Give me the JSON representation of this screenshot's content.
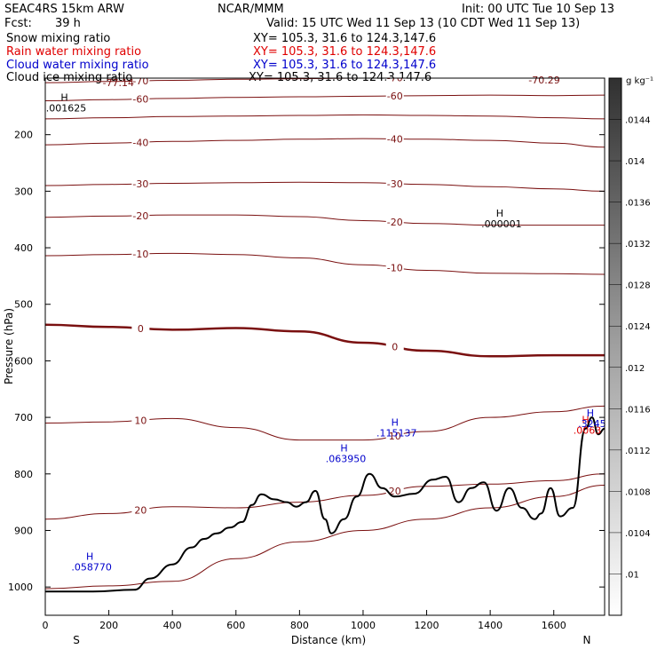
{
  "header": {
    "model": "SEAC4RS 15km ARW",
    "center": "NCAR/MMM",
    "init": "Init: 00 UTC Tue 10 Sep 13",
    "fcst_label": "Fcst:",
    "fcst_value": "39 h",
    "valid": "Valid: 15 UTC Wed 11 Sep 13 (10 CDT Wed 11 Sep 13)",
    "fields": [
      {
        "name": "Snow mixing ratio",
        "xy": "XY= 105.3, 31.6 to 124.3,147.6",
        "color": "#000000"
      },
      {
        "name": "Rain water mixing ratio",
        "xy": "XY= 105.3, 31.6 to 124.3,147.6",
        "color": "#e00000"
      },
      {
        "name": "Cloud water mixing ratio",
        "xy": "XY= 105.3, 31.6 to 124.3,147.6",
        "color": "#0000cc"
      },
      {
        "name": "Cloud ice mixing ratio",
        "xy": "XY= 105.3, 31.6 to 124.3,147.6",
        "color": "#000000"
      }
    ]
  },
  "chart_data": {
    "type": "line",
    "xlabel": "Distance (km)",
    "ylabel": "Pressure (hPa)",
    "xlim": [
      0,
      1760
    ],
    "ylim": [
      1050,
      100
    ],
    "x_ticks": [
      0,
      200,
      400,
      600,
      800,
      1000,
      1200,
      1400,
      1600
    ],
    "y_ticks": [
      200,
      300,
      400,
      500,
      600,
      700,
      800,
      900,
      1000
    ],
    "x_end_labels": {
      "left": "S",
      "right": "N"
    },
    "colorbar": {
      "unit": "g kg⁻¹",
      "ticks": [
        ".01",
        ".0104",
        ".0108",
        ".0112",
        ".0116",
        ".012",
        ".0124",
        ".0128",
        ".0132",
        ".0136",
        ".014",
        ".0144"
      ],
      "range": [
        0.0096,
        0.0148
      ]
    },
    "temperature_contours": [
      {
        "level": -70,
        "label": "-70",
        "x": [
          0,
          200,
          400,
          600,
          800,
          1000,
          1200,
          1400,
          1600,
          1760
        ],
        "p": [
          108,
          106,
          104,
          102,
          101,
          100,
          99,
          98,
          97,
          96
        ]
      },
      {
        "level": -60,
        "label": "-60",
        "x": [
          0,
          200,
          400,
          600,
          800,
          1000,
          1200,
          1400,
          1600,
          1760
        ],
        "p": [
          140,
          138,
          136,
          134,
          133,
          132,
          131,
          130,
          131,
          130
        ]
      },
      {
        "level": -50,
        "label": "",
        "x": [
          0,
          200,
          400,
          600,
          800,
          1000,
          1200,
          1400,
          1600,
          1760
        ],
        "p": [
          172,
          170,
          168,
          167,
          166,
          165,
          166,
          167,
          170,
          172
        ]
      },
      {
        "level": -40,
        "label": "-40",
        "x": [
          0,
          200,
          400,
          600,
          800,
          1000,
          1200,
          1400,
          1600,
          1760
        ],
        "p": [
          218,
          215,
          212,
          210,
          208,
          207,
          208,
          210,
          215,
          222
        ]
      },
      {
        "level": -30,
        "label": "-30",
        "x": [
          0,
          200,
          400,
          600,
          800,
          1000,
          1200,
          1400,
          1600,
          1760
        ],
        "p": [
          290,
          288,
          286,
          285,
          284,
          285,
          288,
          292,
          296,
          300
        ]
      },
      {
        "level": -20,
        "label": "-20",
        "x": [
          0,
          200,
          400,
          600,
          800,
          1000,
          1200,
          1400,
          1600,
          1760
        ],
        "p": [
          346,
          344,
          342,
          342,
          345,
          352,
          357,
          360,
          360,
          360
        ]
      },
      {
        "level": -10,
        "label": "-10",
        "x": [
          0,
          200,
          400,
          600,
          800,
          1000,
          1200,
          1400,
          1600,
          1760
        ],
        "p": [
          414,
          412,
          410,
          412,
          418,
          430,
          440,
          445,
          446,
          447
        ]
      },
      {
        "level": 0,
        "label": "0",
        "x": [
          0,
          200,
          400,
          600,
          800,
          1000,
          1200,
          1400,
          1600,
          1760
        ],
        "p": [
          536,
          540,
          545,
          542,
          548,
          568,
          582,
          592,
          590,
          590
        ]
      },
      {
        "level": 10,
        "label": "10",
        "x": [
          0,
          200,
          400,
          600,
          800,
          1000,
          1200,
          1400,
          1600,
          1760
        ],
        "p": [
          710,
          708,
          702,
          718,
          740,
          740,
          725,
          700,
          690,
          680
        ]
      },
      {
        "level": 20,
        "label": "20",
        "x": [
          0,
          200,
          400,
          600,
          800,
          1000,
          1200,
          1400,
          1600,
          1760
        ],
        "p": [
          880,
          870,
          858,
          860,
          850,
          838,
          822,
          818,
          812,
          800
        ]
      },
      {
        "level": 30,
        "label": "",
        "x": [
          0,
          200,
          400,
          600,
          800,
          1000,
          1200,
          1400,
          1600,
          1760
        ],
        "p": [
          1003,
          998,
          990,
          950,
          920,
          900,
          880,
          860,
          840,
          820
        ]
      }
    ],
    "terrain": {
      "x": [
        0,
        150,
        280,
        330,
        400,
        460,
        500,
        540,
        580,
        620,
        650,
        680,
        720,
        760,
        790,
        820,
        850,
        880,
        900,
        940,
        980,
        1020,
        1060,
        1100,
        1160,
        1220,
        1260,
        1300,
        1340,
        1380,
        1420,
        1460,
        1500,
        1540,
        1560,
        1590,
        1620,
        1660,
        1700,
        1720,
        1740,
        1760
      ],
      "p": [
        1008,
        1008,
        1005,
        985,
        960,
        930,
        915,
        905,
        895,
        885,
        855,
        836,
        845,
        850,
        858,
        850,
        830,
        880,
        905,
        880,
        840,
        800,
        825,
        840,
        835,
        810,
        805,
        850,
        825,
        815,
        865,
        825,
        860,
        880,
        870,
        825,
        875,
        860,
        720,
        700,
        730,
        720
      ]
    },
    "maxima": [
      {
        "label": ".001625",
        "marker": "H",
        "x": 60,
        "p": 140,
        "color": "#000000"
      },
      {
        "label": ".000001",
        "marker": "H",
        "x": 1430,
        "p": 345,
        "color": "#000000"
      },
      {
        "label": ".063950",
        "marker": "H",
        "x": 940,
        "p": 760,
        "color": "#0000cc"
      },
      {
        "label": ".115137",
        "marker": "H",
        "x": 1100,
        "p": 715,
        "color": "#0000cc"
      },
      {
        "label": ".058770",
        "marker": "H",
        "x": 140,
        "p": 952,
        "color": "#0000cc"
      },
      {
        "label": ".0063",
        "marker": "H",
        "x": 1700,
        "p": 710,
        "color": "#e00000"
      },
      {
        "label": ".3245",
        "marker": "H",
        "x": 1715,
        "p": 698,
        "color": "#0000cc"
      }
    ],
    "top_labels": [
      {
        "label": "-77.14",
        "x": 230,
        "p": 108
      },
      {
        "label": "-70.29",
        "x": 1570,
        "p": 103
      }
    ]
  }
}
